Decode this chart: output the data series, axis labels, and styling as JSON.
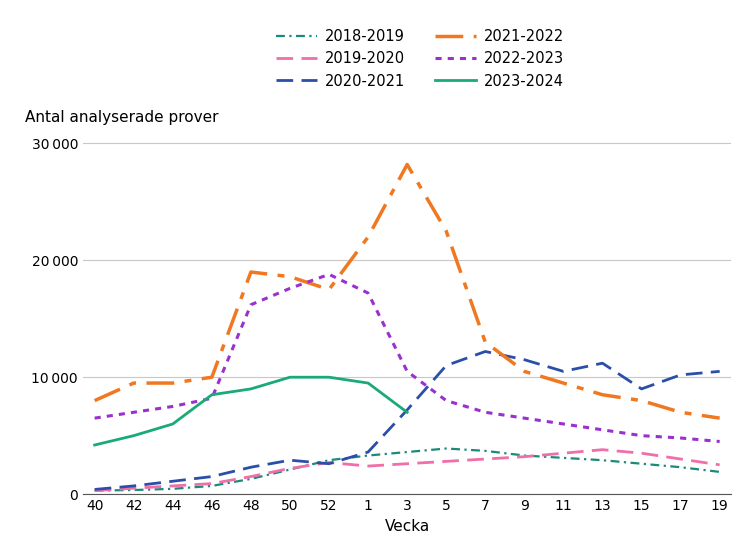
{
  "ylabel": "Antal analyserade prover",
  "xlabel": "Vecka",
  "x_labels": [
    "40",
    "42",
    "44",
    "46",
    "48",
    "50",
    "52",
    "1",
    "3",
    "5",
    "7",
    "9",
    "11",
    "13",
    "15",
    "17",
    "19"
  ],
  "ylim": [
    0,
    31000
  ],
  "yticks": [
    0,
    10000,
    20000,
    30000
  ],
  "series": [
    {
      "name": "2018-2019",
      "color": "#1b8a7a",
      "linestyle": "-.",
      "linewidth": 1.6,
      "dashes": [
        4,
        2,
        1,
        2
      ],
      "x_idx": [
        0,
        1,
        2,
        3,
        4,
        5,
        6,
        7,
        8,
        9,
        10,
        11,
        12,
        13,
        14,
        15,
        16
      ],
      "values": [
        300,
        350,
        450,
        700,
        1300,
        2100,
        2900,
        3300,
        3600,
        3900,
        3700,
        3300,
        3100,
        2900,
        2600,
        2300,
        1900
      ]
    },
    {
      "name": "2019-2020",
      "color": "#f06eaa",
      "linestyle": "--",
      "linewidth": 2.0,
      "dashes": [
        6,
        3
      ],
      "x_idx": [
        0,
        1,
        2,
        3,
        4,
        5,
        6,
        7,
        8,
        9,
        10,
        11,
        12,
        13,
        14,
        15,
        16
      ],
      "values": [
        300,
        500,
        700,
        900,
        1500,
        2200,
        2700,
        2400,
        2600,
        2800,
        3000,
        3200,
        3500,
        3800,
        3500,
        3000,
        2500
      ]
    },
    {
      "name": "2020-2021",
      "color": "#2b4fa8",
      "linestyle": "--",
      "linewidth": 2.0,
      "dashes": [
        6,
        3
      ],
      "x_idx": [
        0,
        1,
        2,
        3,
        4,
        5,
        6,
        7,
        8,
        9,
        10,
        11,
        12,
        13,
        14,
        15,
        16
      ],
      "values": [
        400,
        700,
        1100,
        1500,
        2300,
        2900,
        2600,
        3600,
        7200,
        11000,
        12200,
        11500,
        10500,
        11200,
        9000,
        10200,
        10500
      ]
    },
    {
      "name": "2021-2022",
      "color": "#f07820",
      "linestyle": "-.",
      "linewidth": 2.5,
      "dashes": [
        8,
        3,
        2,
        3
      ],
      "x_idx": [
        0,
        1,
        2,
        3,
        4,
        5,
        6,
        7,
        8,
        9,
        10,
        11,
        12,
        13,
        14,
        15,
        16
      ],
      "values": [
        8000,
        9500,
        9500,
        10000,
        19000,
        18600,
        17500,
        22000,
        28200,
        22500,
        13000,
        10500,
        9500,
        8500,
        8000,
        7000,
        6500
      ]
    },
    {
      "name": "2022-2023",
      "color": "#9b30d0",
      "linestyle": ":",
      "linewidth": 2.2,
      "dashes": [
        2,
        2
      ],
      "x_idx": [
        0,
        1,
        2,
        3,
        4,
        5,
        6,
        7,
        8,
        9,
        10,
        11,
        12,
        13,
        14,
        15,
        16
      ],
      "values": [
        6500,
        7000,
        7500,
        8200,
        16200,
        17600,
        18800,
        17200,
        10500,
        8000,
        7000,
        6500,
        6000,
        5500,
        5000,
        4800,
        4500
      ]
    },
    {
      "name": "2023-2024",
      "color": "#1aaa78",
      "linestyle": "-",
      "linewidth": 2.0,
      "dashes": null,
      "x_idx": [
        0,
        1,
        2,
        3,
        4,
        5,
        6,
        7,
        8
      ],
      "values": [
        4200,
        5000,
        6000,
        8500,
        9000,
        10000,
        10000,
        9500,
        7000
      ]
    }
  ],
  "background_color": "#ffffff",
  "grid_color": "#c8c8c8",
  "legend_fontsize": 10.5,
  "axis_label_fontsize": 11,
  "tick_fontsize": 10
}
